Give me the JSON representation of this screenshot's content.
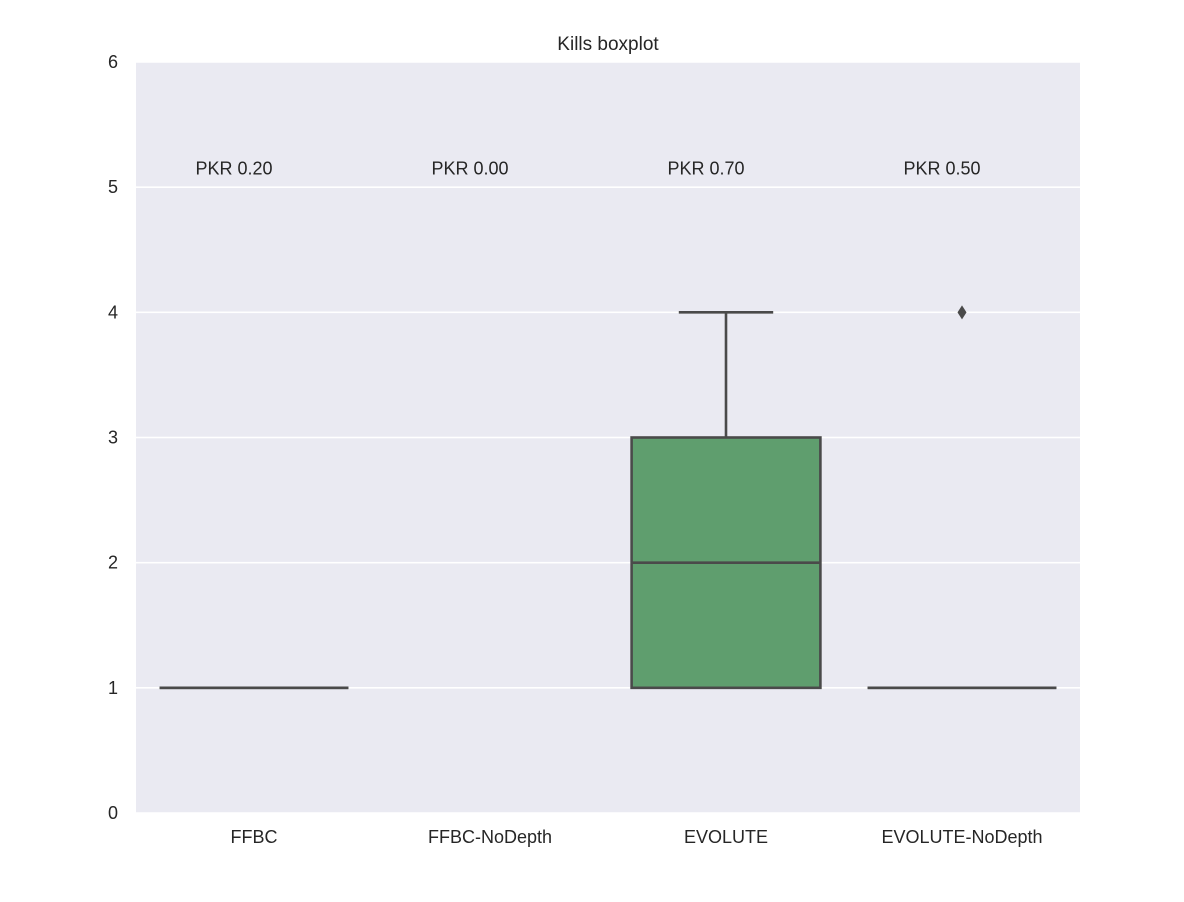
{
  "chart_data": {
    "type": "box",
    "title": "Kills boxplot",
    "xlabel": "",
    "ylabel": "",
    "ylim": [
      0,
      6
    ],
    "yticks": [
      "0",
      "1",
      "2",
      "3",
      "4",
      "5",
      "6"
    ],
    "grid": true,
    "categories": [
      "FFBC",
      "FFBC-NoDepth",
      "EVOLUTE",
      "EVOLUTE-NoDepth"
    ],
    "boxes": [
      {
        "category": "FFBC",
        "min": 1,
        "q1": 1,
        "median": 1,
        "q3": 1,
        "max": 1,
        "outliers": []
      },
      {
        "category": "FFBC-NoDepth",
        "min": null,
        "q1": null,
        "median": null,
        "q3": null,
        "max": null,
        "outliers": []
      },
      {
        "category": "EVOLUTE",
        "min": 1,
        "q1": 1,
        "median": 2,
        "q3": 3,
        "max": 4,
        "outliers": []
      },
      {
        "category": "EVOLUTE-NoDepth",
        "min": 1,
        "q1": 1,
        "median": 1,
        "q3": 1,
        "max": 1,
        "outliers": [
          4
        ]
      }
    ],
    "annotations": [
      "PKR 0.20",
      "PKR 0.00",
      "PKR 0.70",
      "PKR 0.50"
    ],
    "annotation_y": 5.15,
    "colors": {
      "background": "#eaeaf2",
      "grid": "#ffffff",
      "box_fill": "#5f9e6e",
      "line": "#4a4a4a",
      "text": "#262626"
    }
  }
}
